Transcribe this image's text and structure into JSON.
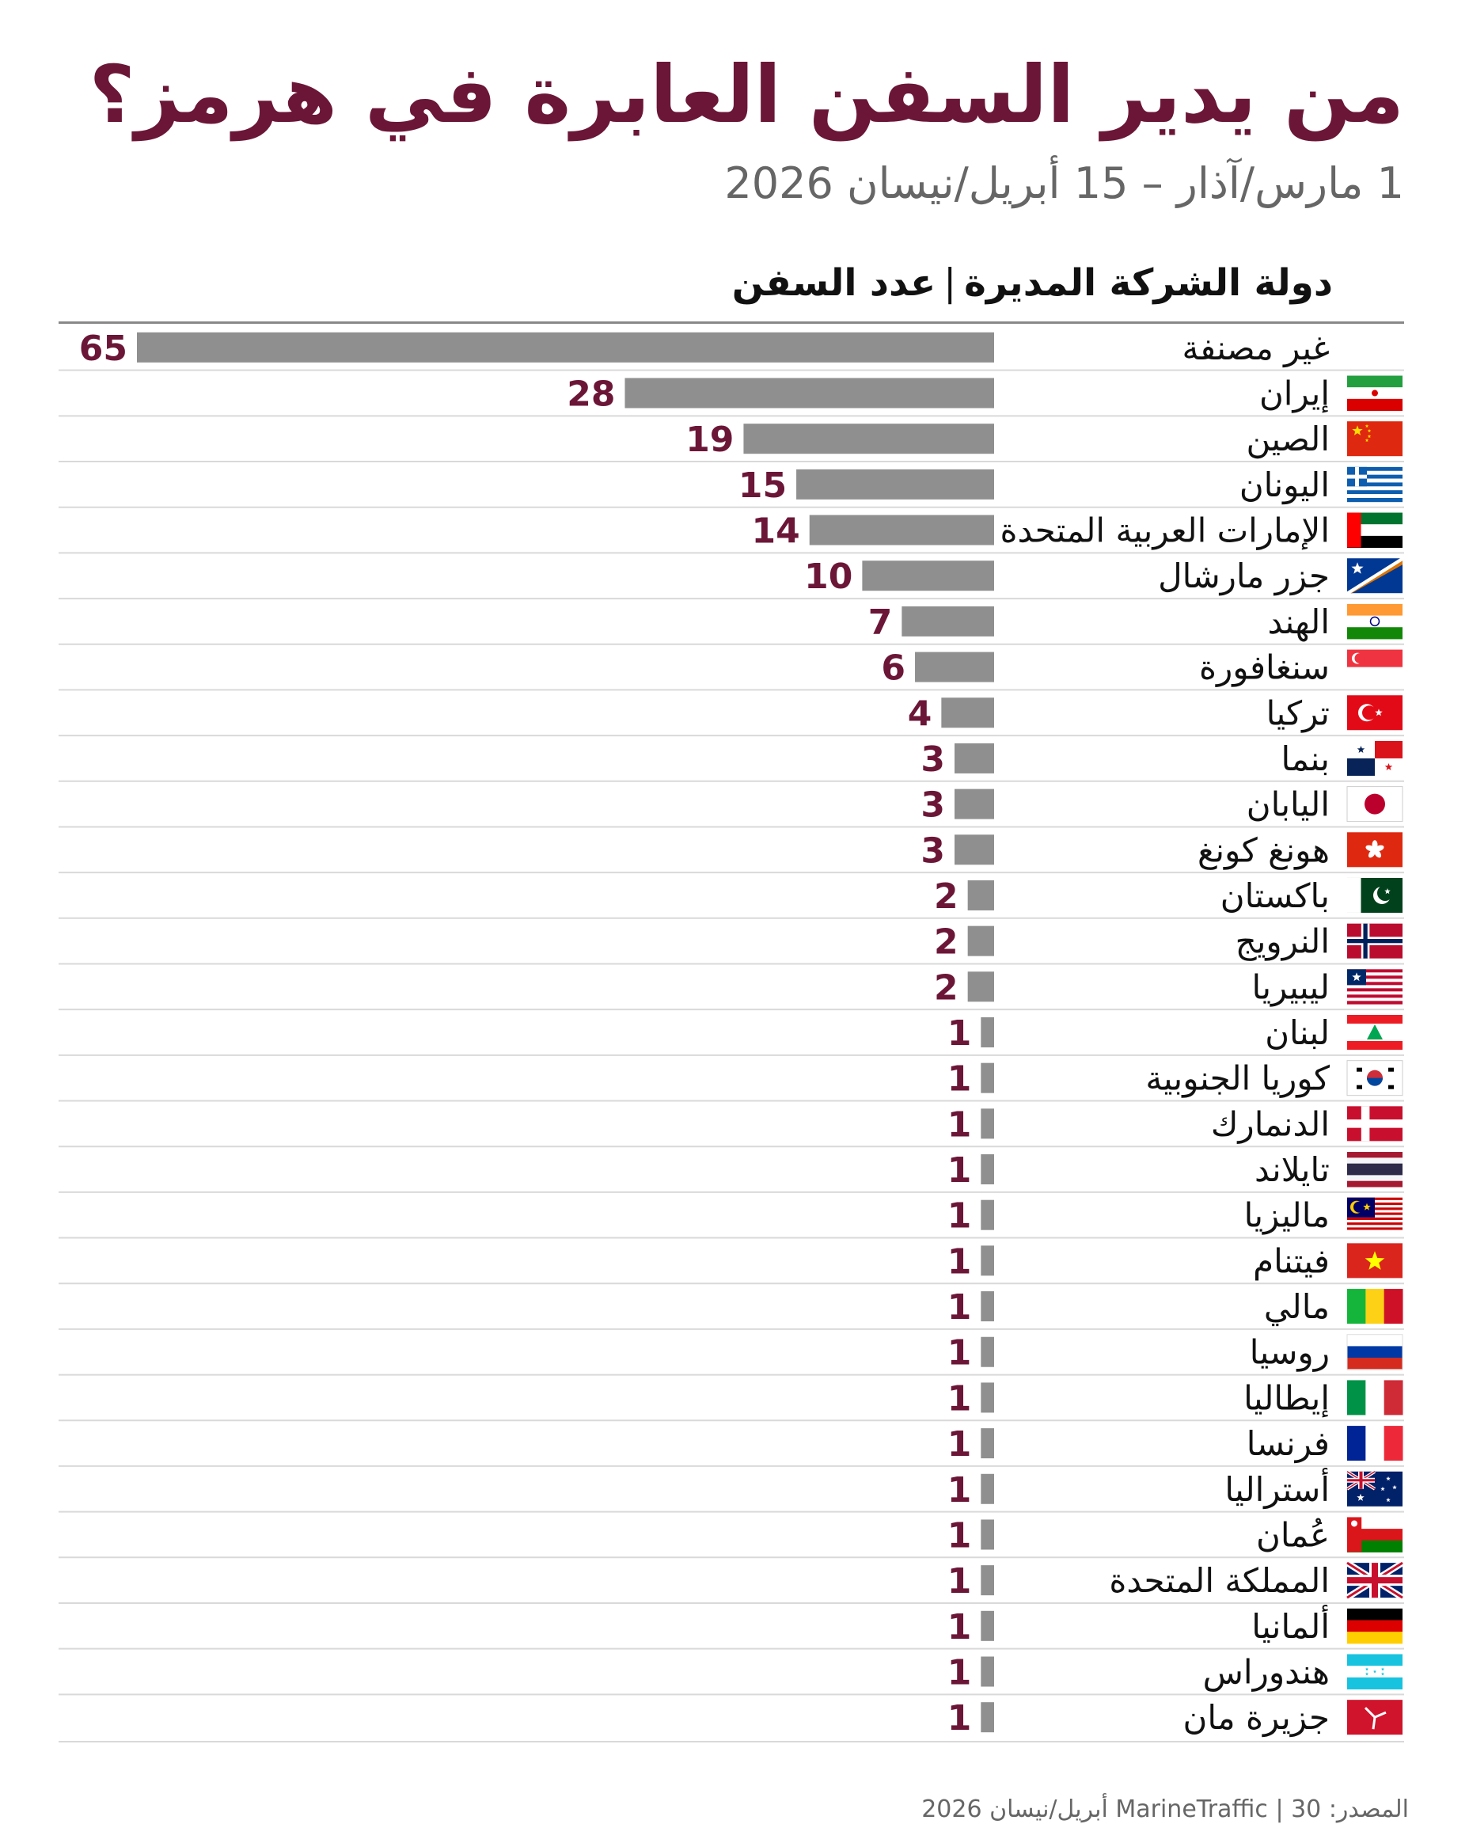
{
  "title": "من يدير السفن العابرة في هرمز؟",
  "subtitle": "1 مارس/آذار – 15 أبريل/نيسان 2026",
  "header": {
    "country_col": "دولة الشركة المديرة",
    "separator": "|",
    "ships_col": "عدد السفن"
  },
  "source": "المصدر: MarineTraffic | 30 أبريل/نيسان 2026",
  "colors": {
    "title": "#6b1637",
    "value_label": "#6b1637",
    "bar": "#8f8f8f",
    "grid": "#d9d9d9"
  },
  "chart_data": {
    "type": "bar",
    "orientation": "horizontal",
    "xlim": [
      0,
      65
    ],
    "categories": [
      "غير مصنفة",
      "إيران",
      "الصين",
      "اليونان",
      "الإمارات العربية المتحدة",
      "جزر مارشال",
      "الهند",
      "سنغافورة",
      "تركيا",
      "بنما",
      "اليابان",
      "هونغ كونغ",
      "باكستان",
      "النرويج",
      "ليبيريا",
      "لبنان",
      "كوريا الجنوبية",
      "الدنمارك",
      "تايلاند",
      "ماليزيا",
      "فيتنام",
      "مالي",
      "روسيا",
      "إيطاليا",
      "فرنسا",
      "أستراليا",
      "عُمان",
      "المملكة المتحدة",
      "ألمانيا",
      "هندوراس",
      "جزيرة مان"
    ],
    "values": [
      65,
      28,
      19,
      15,
      14,
      10,
      7,
      6,
      4,
      3,
      3,
      3,
      2,
      2,
      2,
      1,
      1,
      1,
      1,
      1,
      1,
      1,
      1,
      1,
      1,
      1,
      1,
      1,
      1,
      1,
      1
    ],
    "flags": [
      "none",
      "iran-flag",
      "china-flag",
      "greece-flag",
      "uae-flag",
      "marshall-islands-flag",
      "india-flag",
      "singapore-flag",
      "turkey-flag",
      "panama-flag",
      "japan-flag",
      "hong-kong-flag",
      "pakistan-flag",
      "norway-flag",
      "liberia-flag",
      "lebanon-flag",
      "south-korea-flag",
      "denmark-flag",
      "thailand-flag",
      "malaysia-flag",
      "vietnam-flag",
      "mali-flag",
      "russia-flag",
      "italy-flag",
      "france-flag",
      "australia-flag",
      "oman-flag",
      "uk-flag",
      "germany-flag",
      "honduras-flag",
      "isle-of-man-flag"
    ]
  }
}
